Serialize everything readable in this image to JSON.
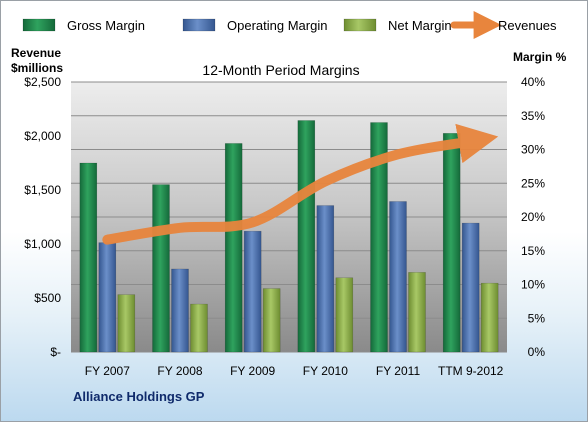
{
  "chart_data": {
    "type": "bar",
    "title": "12-Month Period Margins",
    "company": "Alliance Holdings GP",
    "left_axis_title": [
      "Revenue",
      "$millions"
    ],
    "right_axis_title": "Margin %",
    "categories": [
      "FY 2007",
      "FY 2008",
      "FY 2009",
      "FY 2010",
      "FY 2011",
      "TTM 9-2012"
    ],
    "left_ticks": [
      "$-",
      "$500",
      "$1,000",
      "$1,500",
      "$2,000",
      "$2,500"
    ],
    "right_ticks": [
      "0%",
      "5%",
      "10%",
      "15%",
      "20%",
      "25%",
      "30%",
      "35%",
      "40%"
    ],
    "ylim_left": [
      0,
      2500
    ],
    "ylim_right": [
      0,
      40
    ],
    "grid": true,
    "legend_position": "top",
    "series": [
      {
        "name": "Gross Margin",
        "axis": "right",
        "color": "#1f8a48",
        "values": [
          28.0,
          24.8,
          30.9,
          34.3,
          34.0,
          32.4
        ]
      },
      {
        "name": "Operating Margin",
        "axis": "right",
        "color": "#4a6fae",
        "values": [
          16.2,
          12.3,
          17.9,
          21.7,
          22.3,
          19.1
        ]
      },
      {
        "name": "Net Margin",
        "axis": "right",
        "color": "#8fb04a",
        "values": [
          8.5,
          7.1,
          9.4,
          11.0,
          11.8,
          10.2
        ]
      },
      {
        "name": "Revenues",
        "axis": "left",
        "type": "line",
        "color": "#e8853d",
        "values": [
          1040,
          1150,
          1200,
          1580,
          1830,
          1950
        ]
      }
    ]
  }
}
